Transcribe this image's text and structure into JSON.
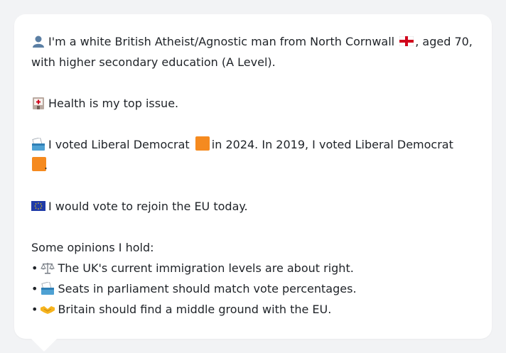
{
  "profile": {
    "intro_a": "I'm a white British Atheist/Agnostic man from North Cornwall",
    "intro_b": ", aged 70, with higher secondary education (A Level).",
    "health": "Health is my top issue.",
    "vote_a": "I voted Liberal Democrat",
    "vote_b": "in 2024. In 2019, I voted Liberal Democrat",
    "vote_c": ".",
    "eu": "I would vote to rejoin the EU today.",
    "opinions_heading": "Some opinions I hold:",
    "opinions": [
      {
        "icon": "scales-icon",
        "text": "The UK's current immigration levels are about right."
      },
      {
        "icon": "ballot-box-icon",
        "text": "Seats in parliament should match vote percentages."
      },
      {
        "icon": "handshake-icon",
        "text": "Britain should find a middle ground with the EU."
      }
    ],
    "bullet": "•"
  },
  "colors": {
    "background": "#f2f3f5",
    "card": "#ffffff",
    "text": "#1f2328",
    "lib_dem": "#f58a1f",
    "eu_blue": "#1f3aa8",
    "eng_red": "#d0021b"
  }
}
